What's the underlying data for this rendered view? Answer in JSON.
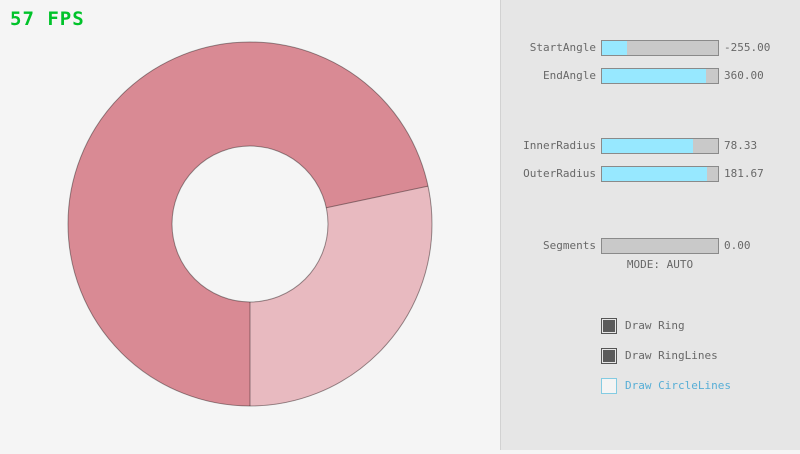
{
  "fps_counter": "57 FPS",
  "panel": {
    "sliders": [
      {
        "label": "StartAngle",
        "value": "-255.00",
        "fill_pct": 21.67
      },
      {
        "label": "EndAngle",
        "value": "360.00",
        "fill_pct": 90.0
      },
      {
        "label": "InnerRadius",
        "value": "78.33",
        "fill_pct": 78.33
      },
      {
        "label": "OuterRadius",
        "value": "181.67",
        "fill_pct": 90.83
      },
      {
        "label": "Segments",
        "value": "0.00",
        "fill_pct": 0
      }
    ],
    "mode_text": "MODE: AUTO",
    "checkboxes": [
      {
        "label": "Draw Ring",
        "checked": true
      },
      {
        "label": "Draw RingLines",
        "checked": true
      },
      {
        "label": "Draw CircleLines",
        "checked": false
      }
    ]
  },
  "ring": {
    "start_angle": -255.0,
    "end_angle": 360.0,
    "inner_radius": 78.33,
    "outer_radius": 181.67,
    "segments": 0,
    "mode": "AUTO",
    "colors": {
      "overlap_fill": "#d98a94",
      "single_fill": "#e8bac0",
      "outline": "rgba(0,0,0,0.38)",
      "background": "#f5f5f5",
      "panel_background": "#e6e6e6",
      "slider_fill": "#97e8ff",
      "fps_green": "#00c32a",
      "focused_blue": "#57aed6"
    }
  }
}
